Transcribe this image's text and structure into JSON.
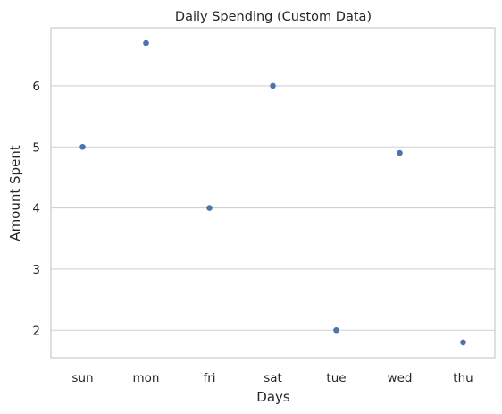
{
  "chart_data": {
    "type": "scatter",
    "title": "Daily Spending (Custom Data)",
    "xlabel": "Days",
    "ylabel": "Amount Spent",
    "categories": [
      "sun",
      "mon",
      "fri",
      "sat",
      "tue",
      "wed",
      "thu"
    ],
    "values": [
      5.0,
      6.7,
      4.0,
      6.0,
      2.0,
      4.9,
      1.8
    ],
    "y_ticks": [
      2,
      3,
      4,
      5,
      6
    ],
    "ylim": [
      1.55,
      6.95
    ],
    "grid": "horizontal",
    "point_color": "#4c72b0"
  }
}
